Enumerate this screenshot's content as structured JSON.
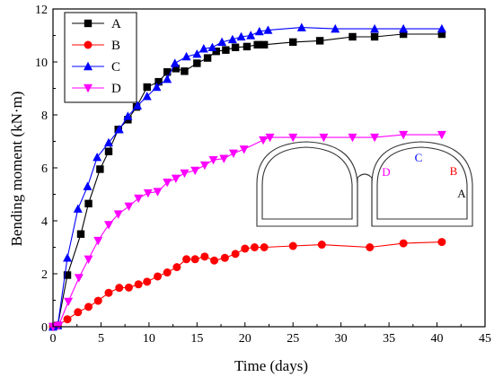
{
  "chart_data": {
    "type": "line",
    "title": "",
    "xlabel": "Time (days)",
    "ylabel": "Bending moment (kN·m)",
    "xlim": [
      0,
      45
    ],
    "ylim": [
      0,
      12
    ],
    "xticks": [
      0,
      5,
      10,
      15,
      20,
      25,
      30,
      35,
      40,
      45
    ],
    "yticks": [
      0,
      2,
      4,
      6,
      8,
      10,
      12
    ],
    "grid": false,
    "legend": "top-left",
    "series": [
      {
        "name": "A",
        "color": "#000000",
        "marker": "square",
        "points": [
          [
            0,
            0
          ],
          [
            0.5,
            0.05
          ],
          [
            1.5,
            1.95
          ],
          [
            2.9,
            3.5
          ],
          [
            3.7,
            4.65
          ],
          [
            4.9,
            5.95
          ],
          [
            5.8,
            6.62
          ],
          [
            6.8,
            7.45
          ],
          [
            7.8,
            7.82
          ],
          [
            8.7,
            8.3
          ],
          [
            9.8,
            9.05
          ],
          [
            11,
            9.25
          ],
          [
            11.9,
            9.62
          ],
          [
            12.8,
            9.75
          ],
          [
            13.7,
            9.65
          ],
          [
            15,
            9.95
          ],
          [
            16.1,
            10.15
          ],
          [
            17,
            10.4
          ],
          [
            18,
            10.45
          ],
          [
            19,
            10.55
          ],
          [
            20.2,
            10.58
          ],
          [
            21.3,
            10.65
          ],
          [
            22,
            10.65
          ],
          [
            25,
            10.75
          ],
          [
            27.8,
            10.8
          ],
          [
            31.2,
            10.95
          ],
          [
            33.5,
            10.95
          ],
          [
            36.5,
            11.05
          ],
          [
            40.5,
            11.05
          ]
        ]
      },
      {
        "name": "B",
        "color": "#ff0000",
        "marker": "circle",
        "points": [
          [
            0,
            0
          ],
          [
            0.5,
            0.05
          ],
          [
            1.5,
            0.28
          ],
          [
            2.6,
            0.55
          ],
          [
            3.7,
            0.75
          ],
          [
            4.7,
            0.98
          ],
          [
            5.8,
            1.28
          ],
          [
            6.9,
            1.47
          ],
          [
            7.9,
            1.48
          ],
          [
            8.9,
            1.6
          ],
          [
            9.8,
            1.7
          ],
          [
            10.9,
            1.9
          ],
          [
            11.9,
            2.05
          ],
          [
            12.9,
            2.25
          ],
          [
            13.9,
            2.55
          ],
          [
            14.8,
            2.55
          ],
          [
            15.8,
            2.65
          ],
          [
            16.8,
            2.5
          ],
          [
            17.9,
            2.6
          ],
          [
            19,
            2.75
          ],
          [
            20,
            2.95
          ],
          [
            21,
            3.0
          ],
          [
            22,
            3.0
          ],
          [
            25,
            3.05
          ],
          [
            28,
            3.1
          ],
          [
            33,
            3.0
          ],
          [
            36.5,
            3.15
          ],
          [
            40.5,
            3.2
          ]
        ]
      },
      {
        "name": "C",
        "color": "#0000ff",
        "marker": "triangle-up",
        "points": [
          [
            0,
            0
          ],
          [
            0.5,
            0.05
          ],
          [
            1.5,
            2.6
          ],
          [
            2.6,
            4.45
          ],
          [
            3.6,
            5.3
          ],
          [
            4.6,
            6.4
          ],
          [
            5.8,
            6.95
          ],
          [
            6.9,
            7.45
          ],
          [
            7.8,
            7.95
          ],
          [
            8.8,
            8.35
          ],
          [
            9.8,
            8.7
          ],
          [
            10.8,
            9.05
          ],
          [
            11.9,
            9.35
          ],
          [
            12.7,
            9.95
          ],
          [
            13.9,
            10.2
          ],
          [
            15,
            10.3
          ],
          [
            15.7,
            10.5
          ],
          [
            16.6,
            10.55
          ],
          [
            17.6,
            10.75
          ],
          [
            18.7,
            10.85
          ],
          [
            19.6,
            10.95
          ],
          [
            20.6,
            11.0
          ],
          [
            21.5,
            11.15
          ],
          [
            22.4,
            11.2
          ],
          [
            25.9,
            11.3
          ],
          [
            29.4,
            11.25
          ],
          [
            33.5,
            11.25
          ],
          [
            36.5,
            11.25
          ],
          [
            40.5,
            11.25
          ]
        ]
      },
      {
        "name": "D",
        "color": "#ff00ff",
        "marker": "triangle-down",
        "points": [
          [
            0,
            0
          ],
          [
            0.6,
            0.05
          ],
          [
            1.6,
            0.95
          ],
          [
            2.7,
            1.85
          ],
          [
            3.7,
            2.55
          ],
          [
            4.7,
            3.25
          ],
          [
            5.8,
            3.85
          ],
          [
            6.8,
            4.25
          ],
          [
            7.9,
            4.55
          ],
          [
            8.9,
            4.85
          ],
          [
            9.9,
            5.05
          ],
          [
            10.9,
            5.1
          ],
          [
            11.9,
            5.45
          ],
          [
            12.8,
            5.6
          ],
          [
            13.7,
            5.8
          ],
          [
            14.8,
            5.9
          ],
          [
            15.8,
            6.1
          ],
          [
            16.7,
            6.3
          ],
          [
            17.8,
            6.35
          ],
          [
            18.8,
            6.55
          ],
          [
            19.9,
            6.7
          ],
          [
            21.9,
            7.05
          ],
          [
            22.6,
            7.15
          ],
          [
            25,
            7.15
          ],
          [
            28.2,
            7.15
          ],
          [
            31.2,
            7.15
          ],
          [
            33.5,
            7.15
          ],
          [
            36.5,
            7.25
          ],
          [
            40.5,
            7.25
          ]
        ]
      }
    ],
    "inset": {
      "labels": [
        {
          "text": "D",
          "color": "#ff00ff"
        },
        {
          "text": "C",
          "color": "#0000ff"
        },
        {
          "text": "B",
          "color": "#ff0000"
        },
        {
          "text": "A",
          "color": "#000000"
        }
      ]
    }
  }
}
